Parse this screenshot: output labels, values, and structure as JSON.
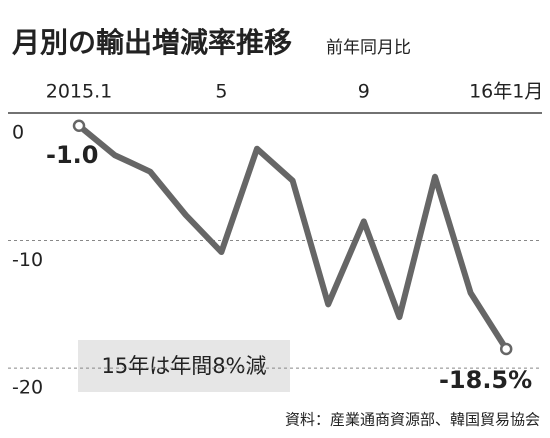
{
  "chart_data": {
    "type": "line",
    "title": "月別の輸出増減率推移",
    "subtitle": "前年同月比",
    "categories": [
      "2015.1",
      null,
      null,
      null,
      "5",
      null,
      null,
      null,
      "9",
      null,
      null,
      null,
      "16年1月"
    ],
    "series": [
      {
        "name": "輸出増減率",
        "color": "#666666",
        "values": [
          -1.0,
          -3.3,
          -4.6,
          -8.0,
          -10.9,
          -2.8,
          -5.3,
          -15.0,
          -8.5,
          -16.0,
          -5.0,
          -14.1,
          -18.5
        ],
        "value_labels": [
          "-1.0",
          null,
          null,
          null,
          null,
          null,
          null,
          null,
          null,
          null,
          null,
          null,
          "-18.5%"
        ]
      }
    ],
    "ylim": [
      -22.5,
      0
    ],
    "yticks": [
      0,
      -10,
      -20
    ],
    "grid": true,
    "annotation": "15年は年間8%減",
    "source": "資料：産業通商資源部、韓国貿易協会"
  }
}
